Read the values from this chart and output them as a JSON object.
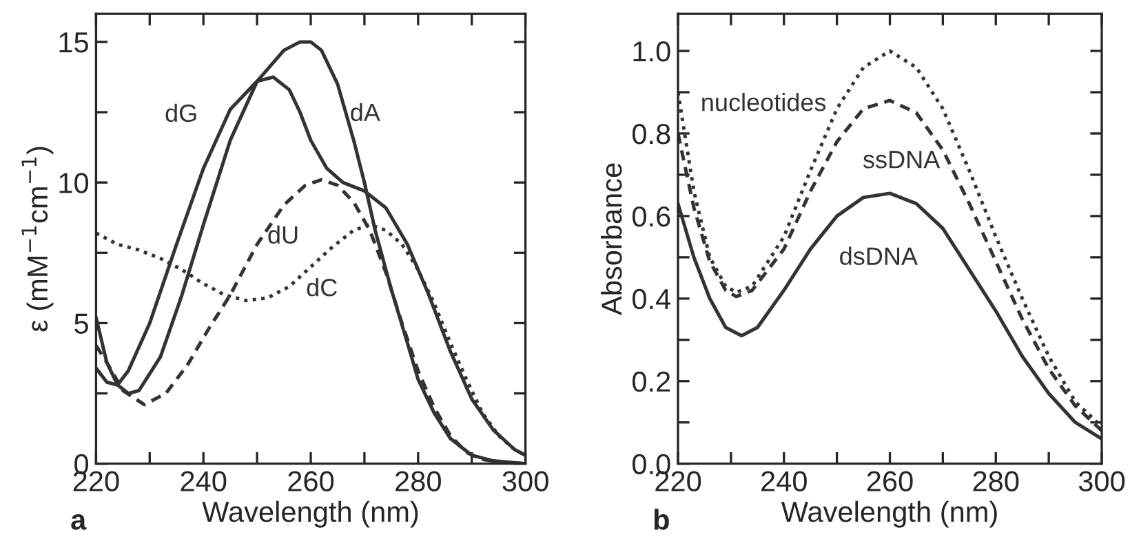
{
  "chart_data": [
    {
      "type": "line",
      "xlabel": "Wavelength (nm)",
      "ylabel": "ε (mM$^{−1}$cm$^{−1}$)",
      "xlim": [
        220,
        300
      ],
      "ylim": [
        0,
        16
      ],
      "xticks": [
        220,
        {
          "value": 230,
          "label": null
        },
        240,
        {
          "value": 250,
          "label": null
        },
        260,
        {
          "value": 270,
          "label": null
        },
        280,
        {
          "value": 290,
          "label": null
        },
        300
      ],
      "yticks": [
        0,
        {
          "value": 2.5,
          "label": null
        },
        5,
        {
          "value": 7.5,
          "label": null
        },
        10,
        {
          "value": 12.5,
          "label": null
        },
        15
      ],
      "grid": false,
      "legend": false,
      "marker": "none",
      "series": [
        {
          "name": "dG",
          "color": "#333333",
          "line_style": "solid",
          "x": [
            220,
            222,
            224,
            226,
            230,
            235,
            240,
            245,
            250,
            253,
            256,
            258,
            260,
            263,
            266,
            270,
            274,
            278,
            282,
            286,
            290,
            294,
            298,
            300
          ],
          "values": [
            3.4,
            2.9,
            2.8,
            3.3,
            5.0,
            7.8,
            10.5,
            12.6,
            13.6,
            13.75,
            13.3,
            12.5,
            11.5,
            10.5,
            10.0,
            9.7,
            9.1,
            7.8,
            6.0,
            4.0,
            2.3,
            1.2,
            0.5,
            0.3
          ]
        },
        {
          "name": "dA",
          "color": "#333333",
          "line_style": "solid",
          "x": [
            220,
            222,
            224,
            226,
            228,
            232,
            236,
            240,
            245,
            250,
            255,
            258,
            260,
            262,
            265,
            268,
            270,
            272,
            275,
            278,
            280,
            283,
            286,
            290,
            294,
            300
          ],
          "values": [
            5.2,
            3.6,
            2.8,
            2.5,
            2.6,
            3.8,
            6.0,
            8.5,
            11.5,
            13.6,
            14.7,
            15.0,
            15.0,
            14.7,
            13.5,
            11.5,
            10.0,
            8.3,
            6.2,
            4.3,
            3.0,
            1.8,
            0.9,
            0.3,
            0.1,
            0.0
          ]
        },
        {
          "name": "dU",
          "color": "#333333",
          "line_style": "dashed",
          "x": [
            220,
            222,
            225,
            229,
            233,
            237,
            241,
            245,
            250,
            255,
            259,
            262,
            265,
            268,
            271,
            274,
            277,
            280,
            283,
            286,
            289,
            292,
            296,
            300
          ],
          "values": [
            4.2,
            3.6,
            2.6,
            2.1,
            2.5,
            3.5,
            4.8,
            6.0,
            7.8,
            9.2,
            9.9,
            10.1,
            9.9,
            9.3,
            8.3,
            6.8,
            5.0,
            3.3,
            2.0,
            1.0,
            0.4,
            0.15,
            0.05,
            0.0
          ]
        },
        {
          "name": "dC",
          "color": "#333333",
          "line_style": "dotted",
          "x": [
            220,
            224,
            228,
            232,
            236,
            240,
            244,
            248,
            252,
            256,
            260,
            264,
            268,
            271,
            274,
            277,
            280,
            283,
            286,
            289,
            292,
            295,
            298,
            300
          ],
          "values": [
            8.2,
            7.8,
            7.6,
            7.3,
            6.9,
            6.4,
            6.0,
            5.8,
            5.9,
            6.3,
            7.0,
            7.7,
            8.3,
            8.5,
            8.3,
            7.8,
            6.9,
            5.7,
            4.3,
            3.0,
            1.8,
            1.0,
            0.5,
            0.3
          ]
        }
      ],
      "annotations": [
        "a"
      ]
    },
    {
      "type": "line",
      "xlabel": "Wavelength (nm)",
      "ylabel": "Absorbance",
      "xlim": [
        220,
        300
      ],
      "ylim": [
        0,
        1.09
      ],
      "xticks": [
        220,
        {
          "value": 230,
          "label": null
        },
        240,
        {
          "value": 250,
          "label": null
        },
        260,
        {
          "value": 270,
          "label": null
        },
        280,
        {
          "value": 290,
          "label": null
        },
        300
      ],
      "yticks": [
        {
          "value": 0,
          "label": "0.0"
        },
        {
          "value": 0.1,
          "label": null
        },
        0.2,
        {
          "value": 0.3,
          "label": null
        },
        0.4,
        {
          "value": 0.5,
          "label": null
        },
        0.6,
        {
          "value": 0.7,
          "label": null
        },
        0.8,
        {
          "value": 0.9,
          "label": null
        },
        {
          "value": 1.0,
          "label": "1.0"
        }
      ],
      "grid": false,
      "legend": false,
      "marker": "none",
      "series": [
        {
          "name": "dsDNA",
          "color": "#333333",
          "line_style": "solid",
          "x": [
            220,
            223,
            226,
            229,
            232,
            235,
            240,
            245,
            250,
            255,
            260,
            265,
            270,
            275,
            280,
            285,
            290,
            295,
            300
          ],
          "values": [
            0.63,
            0.5,
            0.4,
            0.33,
            0.31,
            0.33,
            0.42,
            0.52,
            0.6,
            0.645,
            0.655,
            0.63,
            0.57,
            0.47,
            0.37,
            0.26,
            0.17,
            0.1,
            0.06
          ]
        },
        {
          "name": "ssDNA",
          "color": "#333333",
          "line_style": "dashed",
          "x": [
            220,
            223,
            226,
            229,
            231,
            234,
            240,
            245,
            250,
            255,
            260,
            265,
            270,
            275,
            280,
            285,
            290,
            295,
            300
          ],
          "values": [
            0.8,
            0.62,
            0.49,
            0.42,
            0.405,
            0.42,
            0.52,
            0.66,
            0.78,
            0.86,
            0.88,
            0.85,
            0.76,
            0.63,
            0.49,
            0.35,
            0.23,
            0.14,
            0.08
          ]
        },
        {
          "name": "nucleotides",
          "color": "#333333",
          "line_style": "dotted",
          "x": [
            220,
            223,
            226,
            229,
            231,
            234,
            240,
            245,
            250,
            255,
            260,
            265,
            270,
            275,
            280,
            285,
            290,
            295,
            300
          ],
          "values": [
            0.9,
            0.66,
            0.5,
            0.43,
            0.415,
            0.43,
            0.55,
            0.71,
            0.86,
            0.96,
            1.0,
            0.96,
            0.86,
            0.71,
            0.55,
            0.4,
            0.26,
            0.15,
            0.09
          ]
        }
      ],
      "annotations": [
        "b"
      ]
    }
  ]
}
